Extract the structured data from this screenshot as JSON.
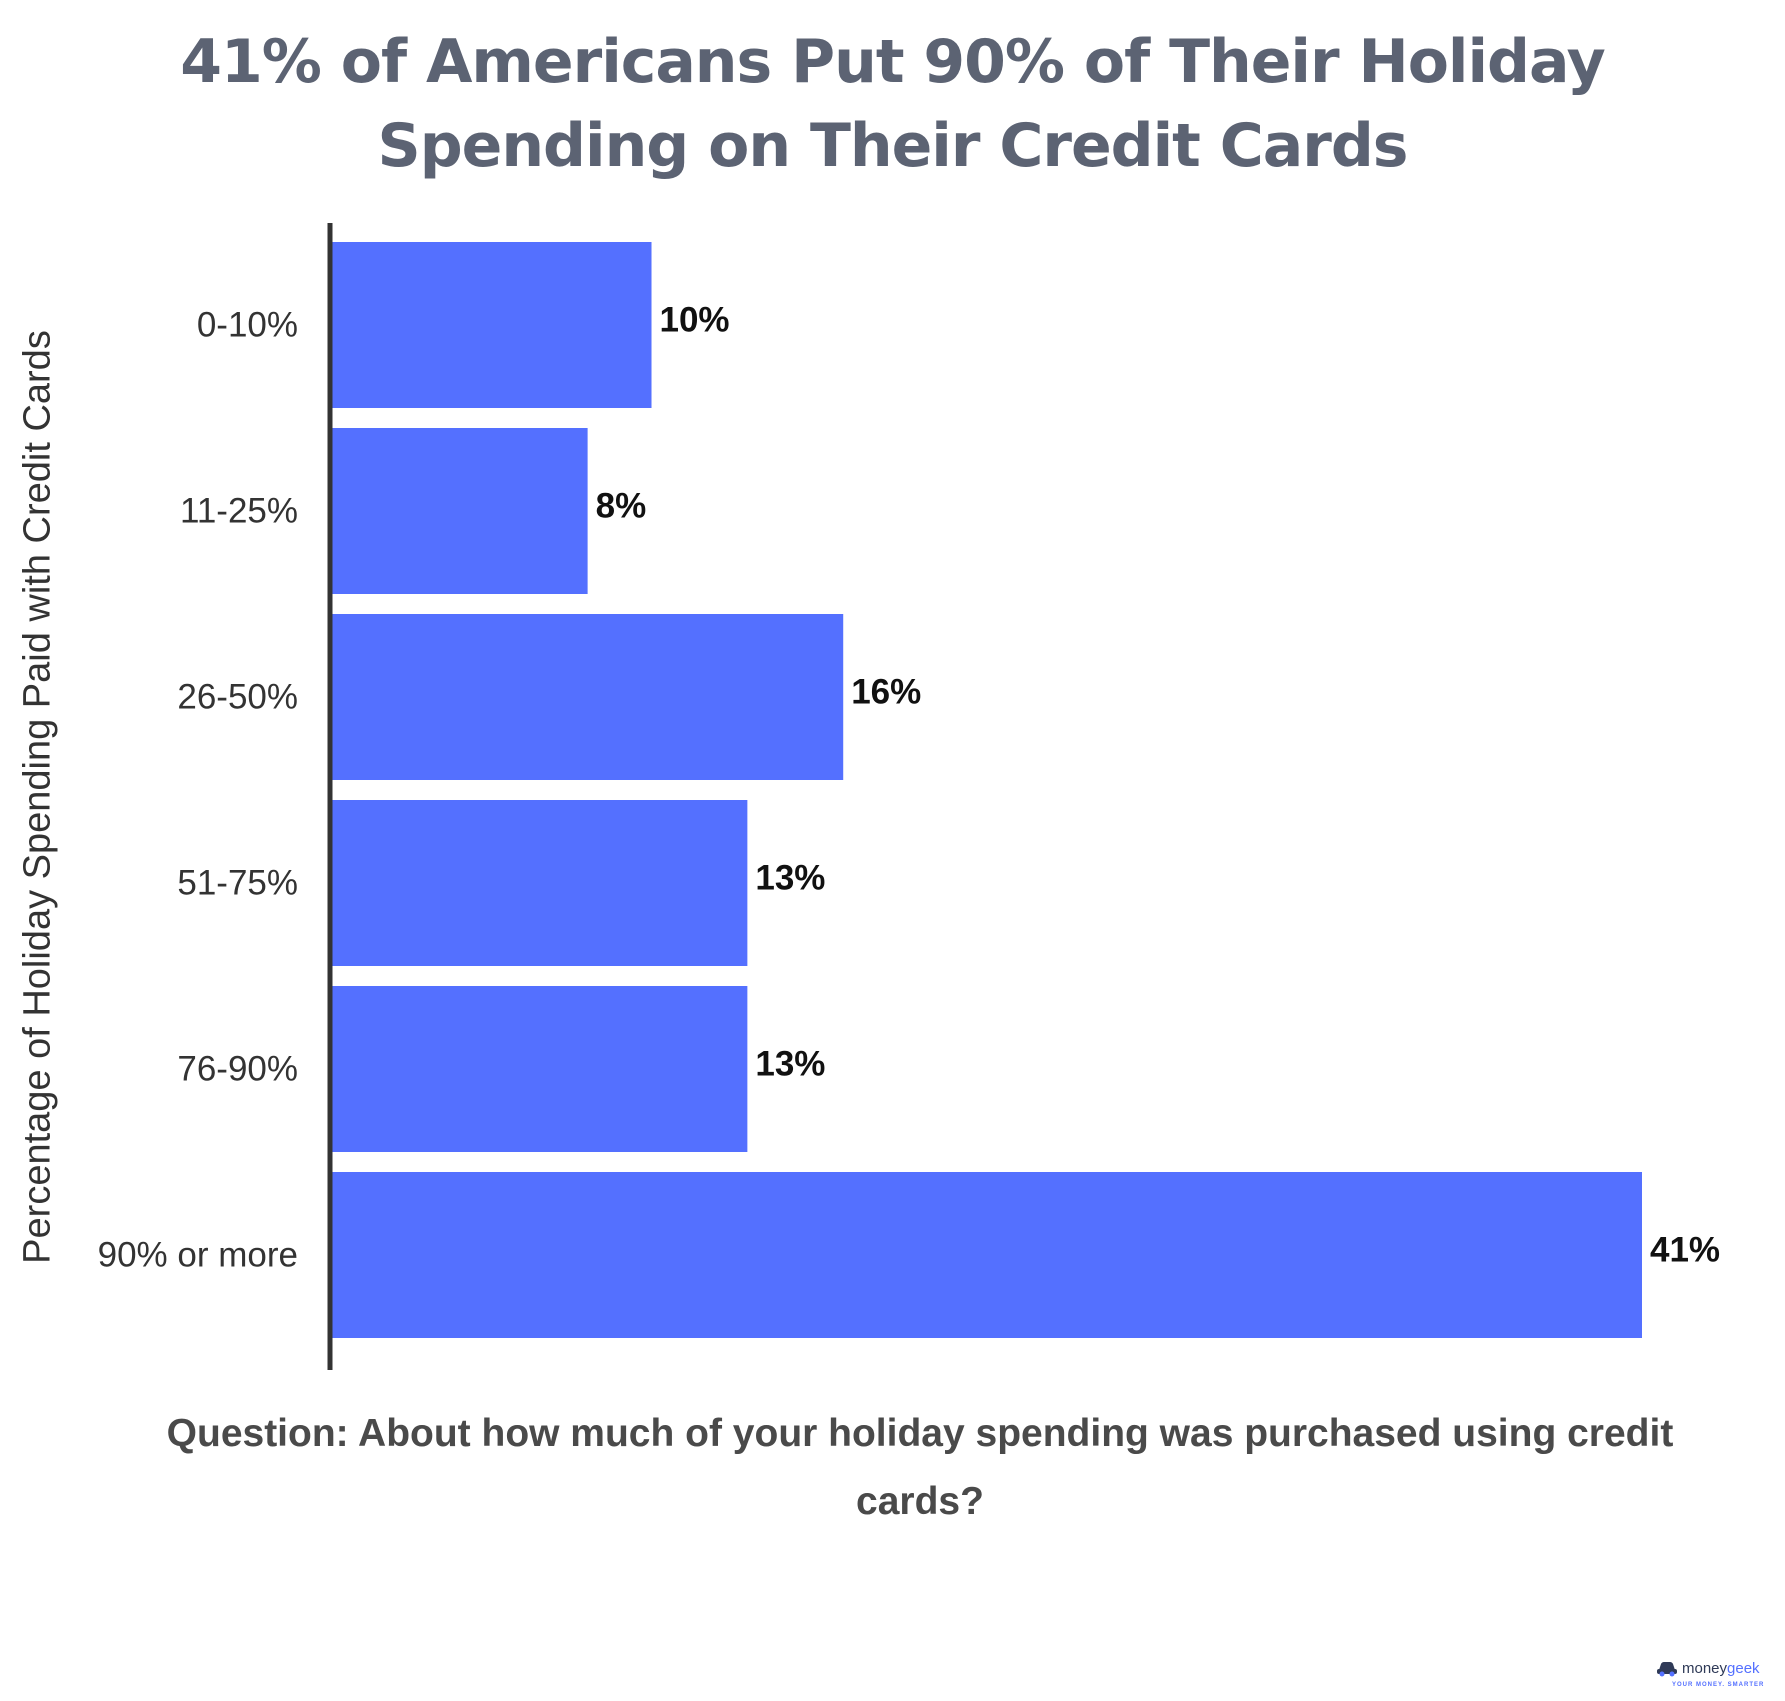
{
  "title_lines": [
    "41% of Americans Put 90% of Their Holiday",
    "Spending on Their Credit Cards"
  ],
  "question": "Question: About how much of your holiday spending was purchased using credit cards?",
  "logo": {
    "name_part1": "money",
    "name_part2": "geek",
    "tagline": "YOUR MONEY. SMARTER",
    "icon": "car-icon"
  },
  "colors": {
    "bar": "#5470ff",
    "title": "#5c6373",
    "axis": "#333333"
  },
  "chart_data": {
    "type": "bar",
    "orientation": "horizontal",
    "title": "41% of Americans Put 90% of Their Holiday Spending on Their Credit Cards",
    "ylabel": "Percentage of Holiday Spending Paid with Credit Cards",
    "xlabel": "",
    "categories": [
      "0-10%",
      "11-25%",
      "26-50%",
      "51-75%",
      "76-90%",
      "90% or more"
    ],
    "values": [
      10,
      8,
      16,
      13,
      13,
      41
    ],
    "data_labels": [
      "10%",
      "8%",
      "16%",
      "13%",
      "13%",
      "41%"
    ],
    "unit": "%",
    "xlim": [
      0,
      41
    ],
    "grid": false,
    "legend": "none"
  }
}
